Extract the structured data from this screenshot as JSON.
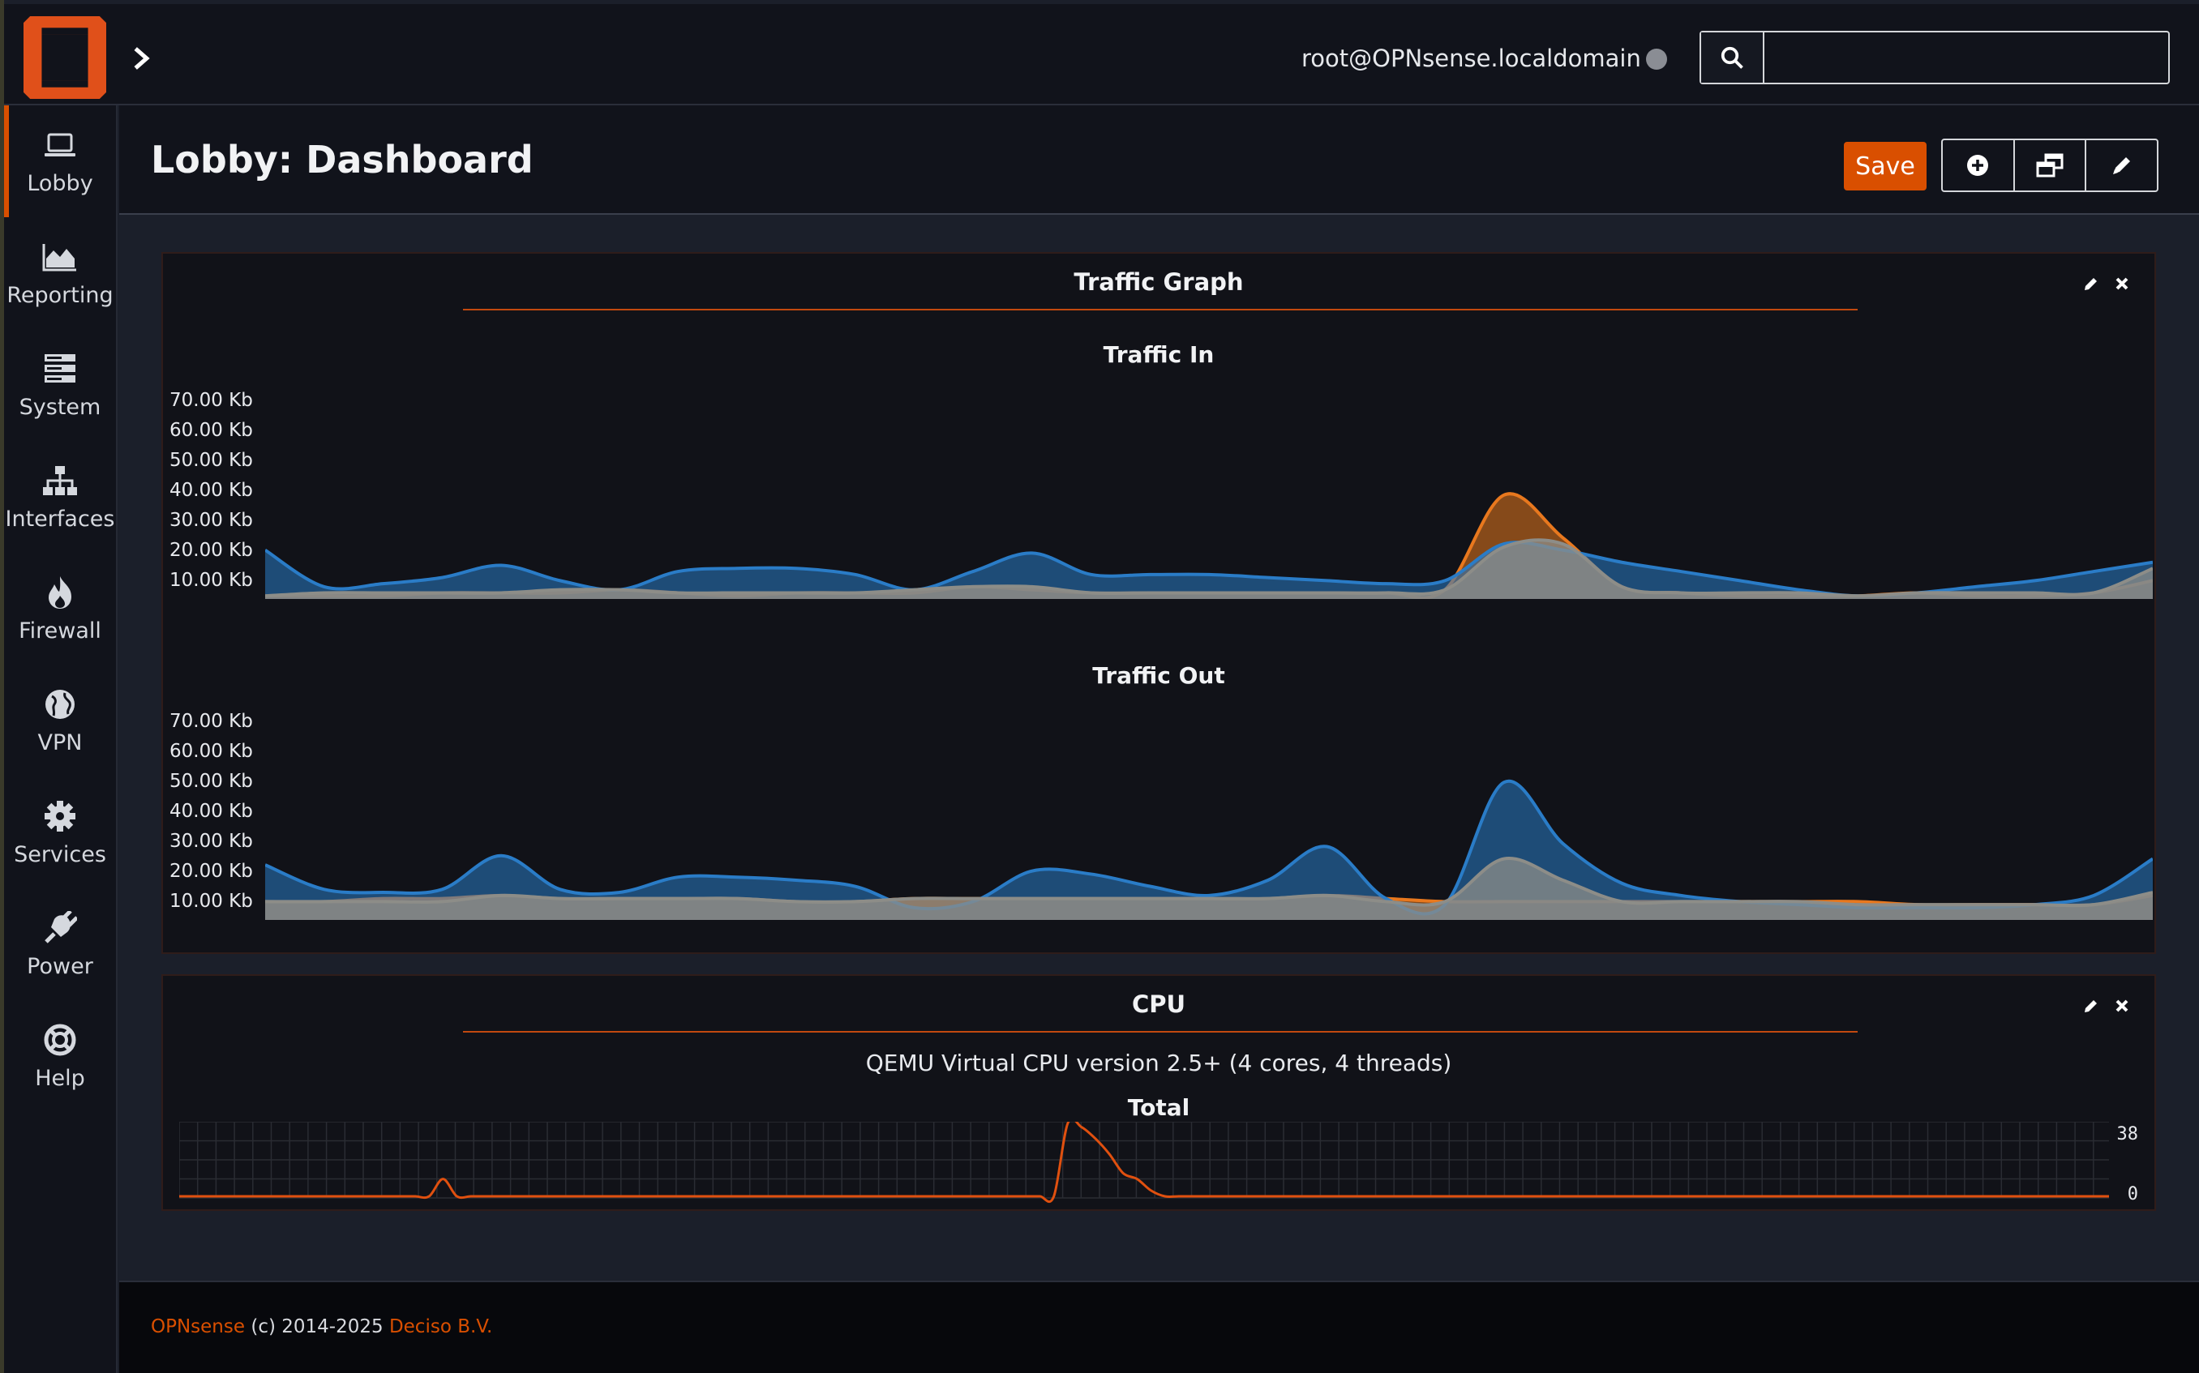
{
  "topbar": {
    "user": "root@OPNsense.localdomain",
    "search": {
      "value": "",
      "placeholder": ""
    },
    "colors": {
      "brand": "#d94f00",
      "status_dot": "#8a8d94"
    }
  },
  "sidebar": {
    "items": [
      {
        "label": "Lobby",
        "icon": "laptop-icon",
        "active": true
      },
      {
        "label": "Reporting",
        "icon": "area-chart-icon"
      },
      {
        "label": "System",
        "icon": "server-icon"
      },
      {
        "label": "Interfaces",
        "icon": "sitemap-icon"
      },
      {
        "label": "Firewall",
        "icon": "fire-icon"
      },
      {
        "label": "VPN",
        "icon": "globe-icon"
      },
      {
        "label": "Services",
        "icon": "gear-icon"
      },
      {
        "label": "Power",
        "icon": "plug-icon"
      },
      {
        "label": "Help",
        "icon": "life-ring-icon"
      }
    ]
  },
  "page": {
    "title": "Lobby: Dashboard",
    "save_label": "Save",
    "toolbar_icons": [
      "plus-circle-icon",
      "window-restore-icon",
      "pencil-icon"
    ]
  },
  "traffic_widget": {
    "title": "Traffic Graph",
    "in_title": "Traffic In",
    "out_title": "Traffic Out",
    "y_ticks": [
      "70.00 Kb",
      "60.00 Kb",
      "50.00 Kb",
      "40.00 Kb",
      "30.00 Kb",
      "20.00 Kb",
      "10.00 Kb"
    ]
  },
  "cpu_widget": {
    "title": "CPU",
    "model": "QEMU Virtual CPU version 2.5+ (4 cores, 4 threads)",
    "total_label": "Total",
    "max_label": "38",
    "min_label": "0"
  },
  "footer": {
    "brand": "OPNsense",
    "copyright": "(c) 2014-2025",
    "company": "Deciso B.V."
  },
  "chart_data": [
    {
      "type": "area",
      "title": "Traffic In",
      "ylim": [
        0,
        70
      ],
      "ylabel": "",
      "y_ticks": [
        "70.00 Kb",
        "60.00 Kb",
        "50.00 Kb",
        "40.00 Kb",
        "30.00 Kb",
        "20.00 Kb",
        "10.00 Kb"
      ],
      "x": [
        0,
        1,
        2,
        3,
        4,
        5,
        6,
        7,
        8,
        9,
        10,
        11,
        12,
        13,
        14,
        15,
        16,
        17,
        18,
        19,
        20,
        21,
        22,
        23,
        24,
        25,
        26,
        27,
        28,
        29,
        30,
        31,
        32
      ],
      "series": [
        {
          "color": "#e8781e",
          "values": [
            1,
            1,
            1,
            2,
            2,
            2,
            3,
            2,
            1,
            2,
            2,
            2,
            4,
            3,
            2,
            2,
            2,
            2,
            2,
            2,
            3,
            34,
            20,
            4,
            2,
            1,
            1,
            1,
            2,
            1,
            1,
            2,
            6
          ]
        },
        {
          "color": "#2a7cc7",
          "values": [
            16,
            4,
            5,
            7,
            11,
            6,
            3,
            9,
            10,
            10,
            8,
            3,
            9,
            15,
            8,
            8,
            8,
            7,
            6,
            5,
            6,
            18,
            16,
            12,
            9,
            6,
            3,
            1,
            2,
            4,
            6,
            9,
            12
          ]
        },
        {
          "color": "#8d8d88",
          "values": [
            1,
            2,
            2,
            2,
            2,
            3,
            3,
            2,
            2,
            2,
            2,
            3,
            4,
            4,
            2,
            2,
            2,
            2,
            2,
            2,
            3,
            17,
            18,
            4,
            2,
            2,
            2,
            1,
            2,
            2,
            2,
            2,
            10
          ]
        }
      ]
    },
    {
      "type": "area",
      "title": "Traffic Out",
      "ylim": [
        0,
        70
      ],
      "ylabel": "",
      "y_ticks": [
        "70.00 Kb",
        "60.00 Kb",
        "50.00 Kb",
        "40.00 Kb",
        "30.00 Kb",
        "20.00 Kb",
        "10.00 Kb"
      ],
      "x": [
        0,
        1,
        2,
        3,
        4,
        5,
        6,
        7,
        8,
        9,
        10,
        11,
        12,
        13,
        14,
        15,
        16,
        17,
        18,
        19,
        20,
        21,
        22,
        23,
        24,
        25,
        26,
        27,
        28,
        29,
        30,
        31,
        32
      ],
      "series": [
        {
          "color": "#e8781e",
          "values": [
            6,
            6,
            7,
            7,
            8,
            7,
            7,
            7,
            7,
            6,
            6,
            7,
            7,
            7,
            7,
            7,
            7,
            7,
            8,
            7,
            6,
            6,
            6,
            6,
            6,
            6,
            6,
            6,
            5,
            5,
            5,
            5,
            8
          ]
        },
        {
          "color": "#2a7cc7",
          "values": [
            18,
            10,
            9,
            10,
            21,
            10,
            9,
            14,
            14,
            13,
            11,
            4,
            6,
            16,
            15,
            11,
            8,
            13,
            24,
            7,
            5,
            45,
            25,
            12,
            8,
            6,
            5,
            4,
            4,
            4,
            5,
            8,
            20
          ]
        },
        {
          "color": "#8d8d88",
          "values": [
            6,
            6,
            6,
            6,
            8,
            7,
            7,
            7,
            7,
            6,
            6,
            7,
            7,
            7,
            7,
            7,
            7,
            7,
            8,
            6,
            6,
            20,
            13,
            6,
            6,
            6,
            6,
            5,
            5,
            5,
            5,
            5,
            9
          ]
        }
      ]
    },
    {
      "type": "line",
      "title": "Total",
      "ylim": [
        0,
        38
      ],
      "y_ticks": [
        "38",
        "0"
      ],
      "series": [
        {
          "color": "#e0500f",
          "values": [
            0,
            0,
            0,
            0,
            0,
            0,
            0,
            0,
            0,
            0,
            0,
            0,
            0,
            0,
            0,
            0,
            0,
            0,
            0,
            9,
            0,
            0,
            0,
            0,
            0,
            0,
            0,
            0,
            0,
            0,
            0,
            0,
            0,
            0,
            0,
            0,
            0,
            0,
            0,
            0,
            0,
            0,
            0,
            0,
            0,
            0,
            0,
            0,
            0,
            0,
            0,
            0,
            0,
            0,
            0,
            0,
            0,
            0,
            0,
            0,
            0,
            0,
            0,
            0,
            38,
            36,
            30,
            22,
            12,
            9,
            3,
            0,
            0,
            0,
            0,
            0,
            0,
            0,
            0,
            0,
            0,
            0,
            0,
            0,
            0,
            0,
            0,
            0,
            0,
            0,
            0,
            0,
            0,
            0,
            0,
            0,
            0,
            0,
            0,
            0,
            0,
            0,
            0,
            0,
            0,
            0,
            0,
            0,
            0,
            0,
            0,
            0,
            0,
            0,
            0,
            0,
            0,
            0,
            0,
            0,
            0,
            0,
            0,
            0,
            0,
            0,
            0,
            0,
            0,
            0,
            0,
            0,
            0,
            0,
            0,
            0,
            0,
            0,
            0,
            0
          ]
        }
      ]
    }
  ]
}
